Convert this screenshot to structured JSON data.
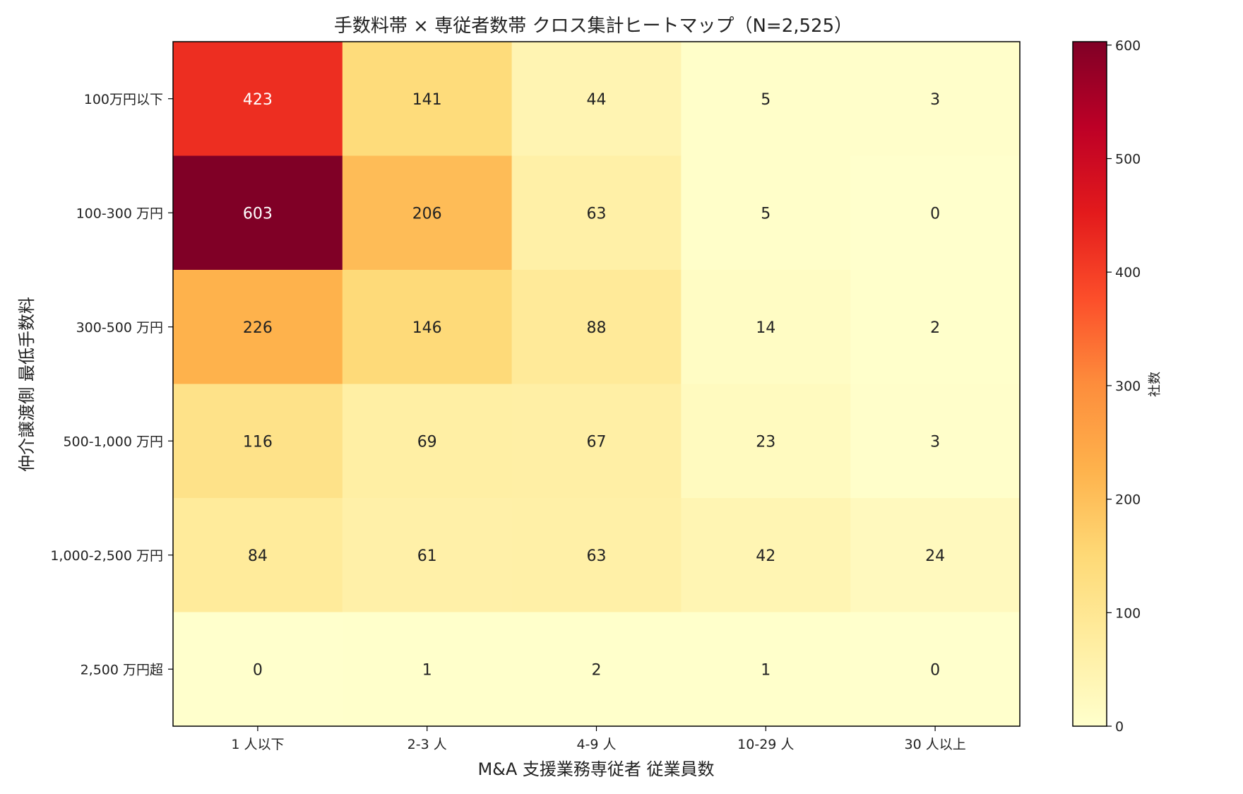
{
  "chart_data": {
    "type": "heatmap",
    "title": "手数料帯 × 専従者数帯 クロス集計ヒートマップ（N=2,525）",
    "xlabel": "M&A 支援業務専従者 従業員数",
    "ylabel": "仲介譲渡側 最低手数料",
    "x_categories": [
      "1 人以下",
      "2-3 人",
      "4-9 人",
      "10-29 人",
      "30 人以上"
    ],
    "y_categories": [
      "100万円以下",
      "100-300 万円",
      "300-500 万円",
      "500-1,000 万円",
      "1,000-2,500 万円",
      "2,500 万円超"
    ],
    "values": [
      [
        423,
        141,
        44,
        5,
        3
      ],
      [
        603,
        206,
        63,
        5,
        0
      ],
      [
        226,
        146,
        88,
        14,
        2
      ],
      [
        116,
        69,
        67,
        23,
        3
      ],
      [
        84,
        61,
        63,
        42,
        24
      ],
      [
        0,
        1,
        2,
        1,
        0
      ]
    ],
    "colorbar": {
      "label": "社数",
      "min": 0,
      "max": 603,
      "ticks": [
        0,
        100,
        200,
        300,
        400,
        500,
        600
      ],
      "colormap": "YlOrRd"
    },
    "colormap_stops": [
      "#ffffcc",
      "#ffeda0",
      "#fed976",
      "#feb24c",
      "#fd8d3c",
      "#fc4e2a",
      "#e31a1c",
      "#bd0026",
      "#800026"
    ]
  }
}
